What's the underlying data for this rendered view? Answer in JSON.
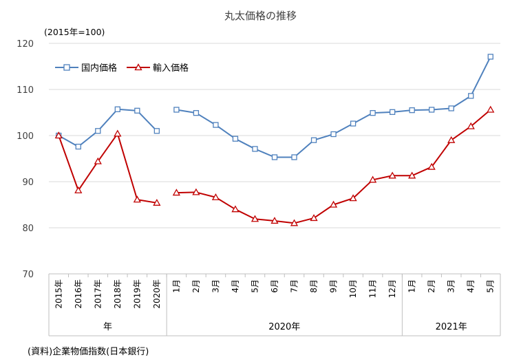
{
  "chart_data": {
    "type": "line",
    "title": "丸太価格の推移",
    "unit_label": "(2015年=100)",
    "source": "(資料)企業物価指数(日本銀行)",
    "ylim": [
      70,
      120
    ],
    "yticks": [
      70,
      80,
      90,
      100,
      110,
      120
    ],
    "grid": true,
    "legend_position": "top-left",
    "categories": [
      "2015年",
      "2016年",
      "2017年",
      "2018年",
      "2019年",
      "2020年",
      "1月",
      "2月",
      "3月",
      "4月",
      "5月",
      "6月",
      "7月",
      "8月",
      "9月",
      "10月",
      "11月",
      "12月",
      "1月",
      "2月",
      "3月",
      "4月",
      "5月"
    ],
    "category_groups": [
      {
        "label": "年",
        "start": 0,
        "end": 5
      },
      {
        "label": "2020年",
        "start": 6,
        "end": 17
      },
      {
        "label": "2021年",
        "start": 18,
        "end": 22
      }
    ],
    "segments": [
      [
        0,
        5
      ],
      [
        6,
        22
      ]
    ],
    "series": [
      {
        "name": "国内価格",
        "color": "#4f81bd",
        "marker": "square",
        "values": [
          100.0,
          97.6,
          101.0,
          105.7,
          105.4,
          101.0,
          105.6,
          104.9,
          102.3,
          99.3,
          97.1,
          95.3,
          95.3,
          99.0,
          100.3,
          102.6,
          104.9,
          105.1,
          105.5,
          105.6,
          105.9,
          108.6,
          117.1
        ]
      },
      {
        "name": "輸入価格",
        "color": "#c00000",
        "marker": "triangle",
        "values": [
          100.0,
          88.1,
          94.4,
          100.4,
          86.1,
          85.4,
          87.6,
          87.7,
          86.6,
          84.0,
          81.9,
          81.5,
          81.0,
          82.1,
          85.0,
          86.4,
          90.4,
          91.3,
          91.3,
          93.2,
          99.0,
          102.0,
          105.6
        ]
      }
    ]
  }
}
